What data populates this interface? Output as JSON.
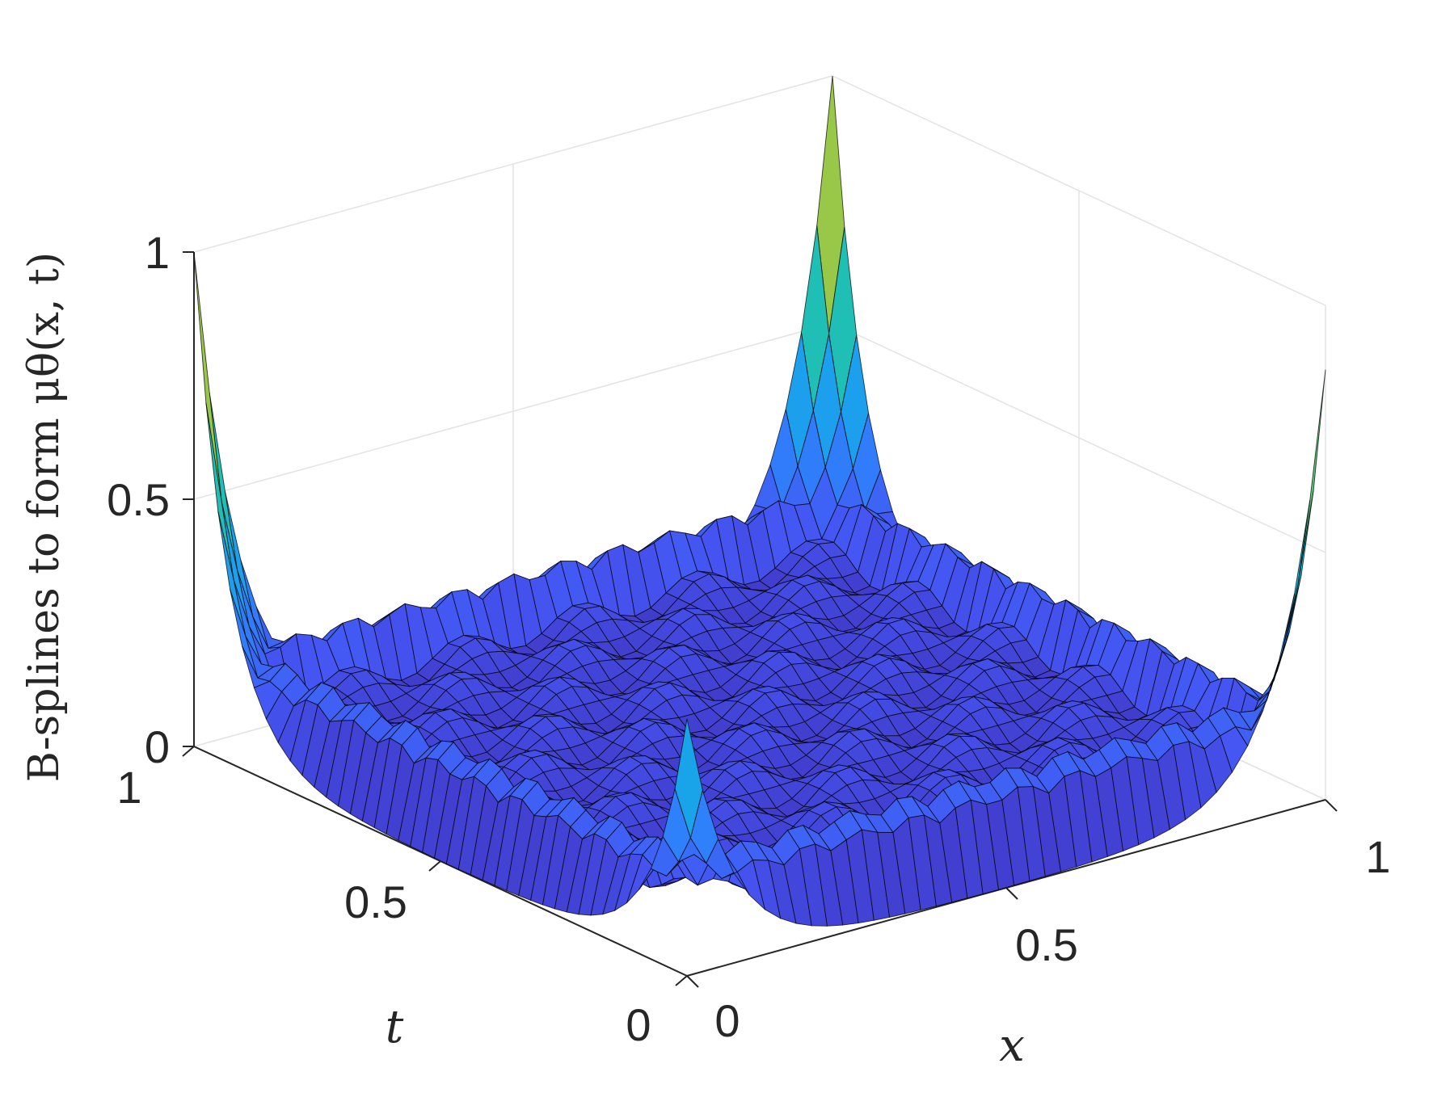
{
  "chart_data": {
    "type": "surface",
    "zlabel": "B-splines to form μθ(x, t)",
    "xlabel": "x",
    "ylabel": "t",
    "xlim": [
      0,
      1
    ],
    "ylim": [
      0,
      1
    ],
    "zlim": [
      0,
      1
    ],
    "xticks": [
      {
        "value": 0,
        "label": "0"
      },
      {
        "value": 0.5,
        "label": "0.5"
      },
      {
        "value": 1,
        "label": "1"
      }
    ],
    "yticks": [
      {
        "value": 0,
        "label": "0"
      },
      {
        "value": 0.5,
        "label": "0.5"
      },
      {
        "value": 1,
        "label": "1"
      }
    ],
    "zticks": [
      {
        "value": 0,
        "label": "0"
      },
      {
        "value": 0.5,
        "label": "0.5"
      },
      {
        "value": 1,
        "label": "1"
      }
    ],
    "grid": true,
    "colormap": "parula",
    "grid_resolution": 41,
    "peaks": [
      {
        "x": 0,
        "t": 0,
        "z": 0.52
      },
      {
        "x": 1,
        "t": 0,
        "z": 0.87
      },
      {
        "x": 0,
        "t": 1,
        "z": 1.0
      },
      {
        "x": 1,
        "t": 1,
        "z": 1.0
      }
    ],
    "edge_ridge_level": 0.24,
    "interior_level": 0.1,
    "colors": {
      "edge": "#000000",
      "grid": "#e3e3e3",
      "axis": "#262626"
    }
  }
}
